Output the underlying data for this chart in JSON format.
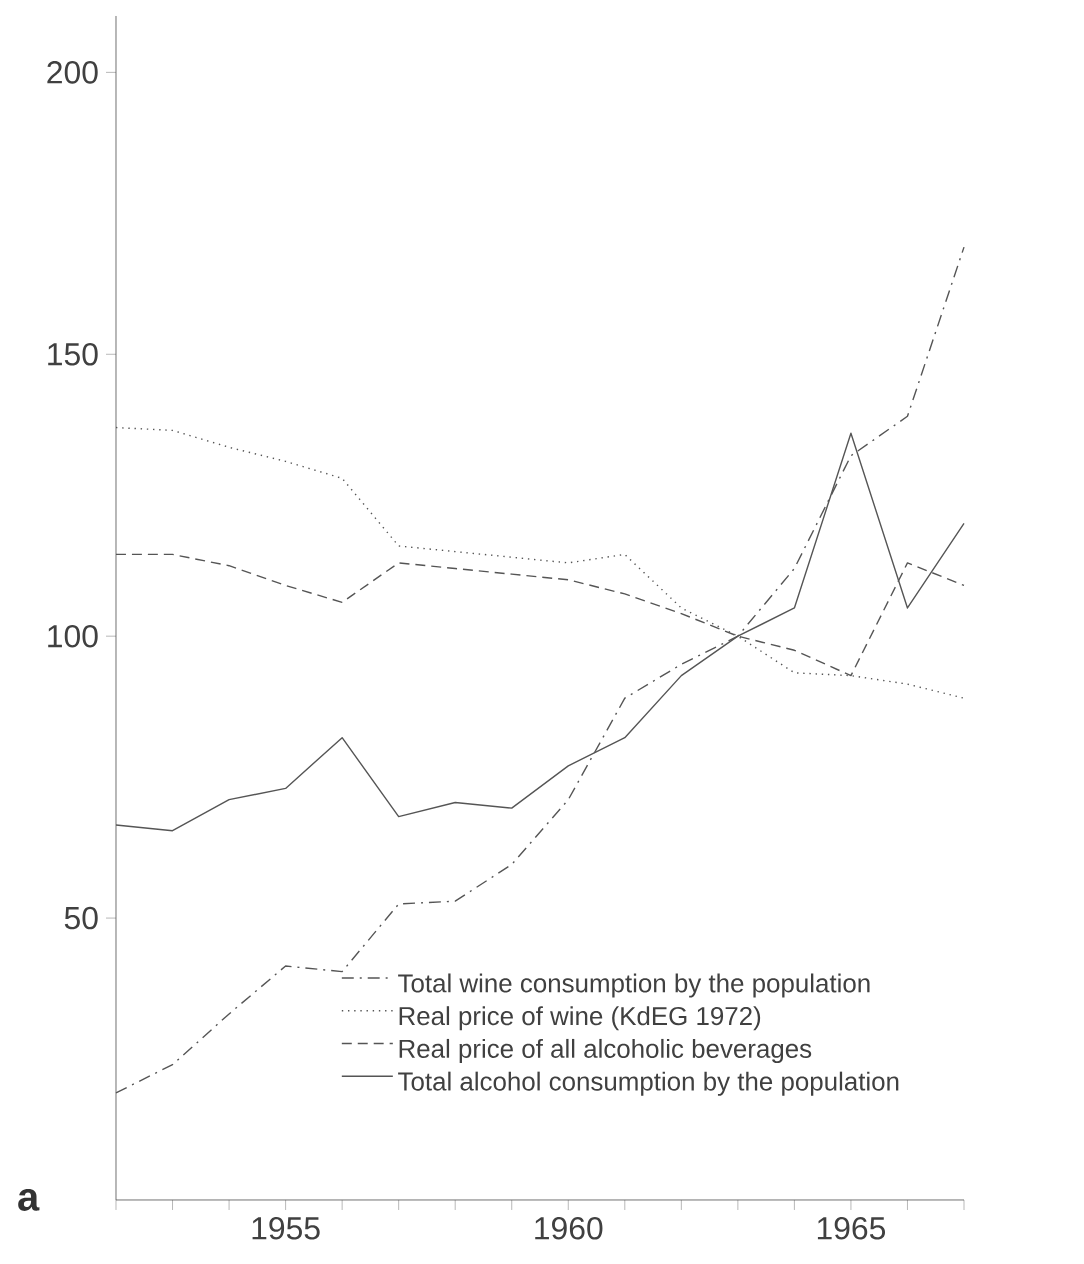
{
  "chart_data": {
    "type": "line",
    "x": [
      1952,
      1953,
      1954,
      1955,
      1956,
      1957,
      1958,
      1959,
      1960,
      1961,
      1962,
      1963,
      1964,
      1965,
      1966,
      1967
    ],
    "series": [
      {
        "name": "Total wine consumption by the population",
        "color": "#555555",
        "line_style": "dashdot",
        "values": [
          19,
          24,
          33,
          41.5,
          40.5,
          52.5,
          53,
          59.5,
          71,
          89,
          95,
          100,
          112,
          132,
          139,
          169
        ]
      },
      {
        "name": "Real price of wine (KdEG 1972)",
        "color": "#555555",
        "line_style": "dotted",
        "values": [
          137,
          136.5,
          133.5,
          131,
          128,
          116,
          115,
          114,
          113,
          114.5,
          105,
          100,
          93.5,
          93,
          91.5,
          89
        ]
      },
      {
        "name": "Real price of all alcoholic beverages",
        "color": "#555555",
        "line_style": "dashed",
        "values": [
          114.5,
          114.5,
          112.5,
          109,
          106,
          113,
          112,
          111,
          110,
          107.5,
          104,
          100,
          97.5,
          93,
          113,
          109
        ]
      },
      {
        "name": "Total alcohol consumption by the population",
        "color": "#555555",
        "line_style": "solid",
        "values": [
          66.5,
          65.5,
          71,
          73,
          82,
          68,
          70.5,
          69.5,
          77,
          82,
          93,
          100,
          105,
          136,
          105,
          120
        ]
      }
    ],
    "xlim": [
      1952,
      1967
    ],
    "ylim": [
      0,
      210
    ],
    "xticks": [
      {
        "value": 1952,
        "label": null
      },
      {
        "value": 1953,
        "label": null
      },
      {
        "value": 1954,
        "label": null
      },
      1955,
      {
        "value": 1956,
        "label": null
      },
      {
        "value": 1957,
        "label": null
      },
      {
        "value": 1958,
        "label": null
      },
      {
        "value": 1959,
        "label": null
      },
      1960,
      {
        "value": 1961,
        "label": null
      },
      {
        "value": 1962,
        "label": null
      },
      {
        "value": 1963,
        "label": null
      },
      {
        "value": 1964,
        "label": null
      },
      1965,
      {
        "value": 1966,
        "label": null
      },
      {
        "value": 1967,
        "label": null
      }
    ],
    "yticks": [
      50,
      100,
      150,
      200
    ],
    "grid": false,
    "legend": "bottom right",
    "marker": "none",
    "annotations": [
      "a"
    ]
  }
}
